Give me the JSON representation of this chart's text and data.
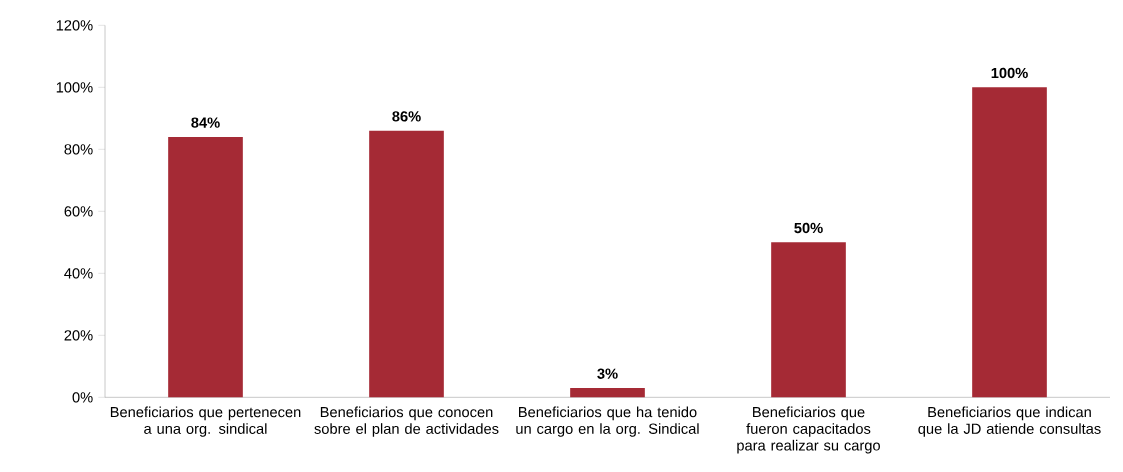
{
  "chart_data": {
    "type": "bar",
    "categories": [
      "Beneficiarios que pertenecen a una org. sindical",
      "Beneficiarios que conocen sobre el plan de actividades",
      "Beneficiarios que ha tenido un cargo en la org. Sindical",
      "Beneficiarios que fueron capacitados para realizar su cargo",
      "Beneficiarios que indican que la JD atiende consultas"
    ],
    "values": [
      84,
      86,
      3,
      50,
      100
    ],
    "value_labels": [
      "84%",
      "86%",
      "3%",
      "50%",
      "100%"
    ],
    "color": "#a52a35",
    "ylim": [
      0,
      120
    ],
    "yticks": [
      {
        "value": 0,
        "label": "0%"
      },
      {
        "value": 20,
        "label": "20%"
      },
      {
        "value": 40,
        "label": "40%"
      },
      {
        "value": 60,
        "label": "60%"
      },
      {
        "value": 80,
        "label": "80%"
      },
      {
        "value": 100,
        "label": "100%"
      },
      {
        "value": 120,
        "label": "120%"
      }
    ]
  }
}
